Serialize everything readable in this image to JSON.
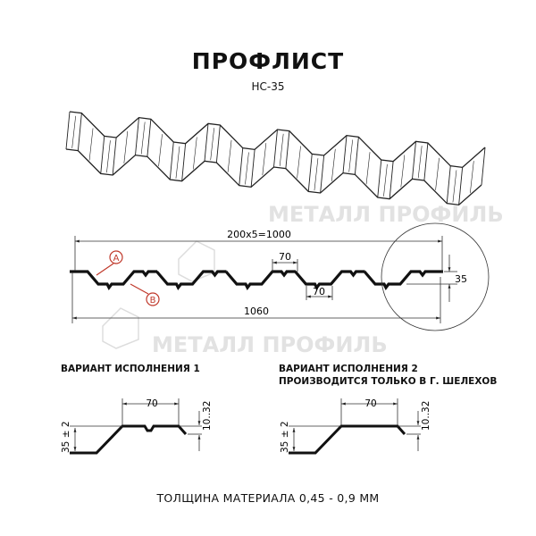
{
  "title": "ПРОФЛИСТ",
  "subtitle": "НС-35",
  "watermark": "МЕТАЛЛ ПРОФИЛЬ",
  "profile": {
    "dim_pitch": "200x5=1000",
    "dim_width": "1060",
    "dim_top_flat": "70",
    "dim_bottom_flat": "70",
    "dim_height": "35",
    "marker_a": "A",
    "marker_b": "B",
    "marker_color": "#c0392b"
  },
  "variant1": {
    "caption": "ВАРИАНТ ИСПОЛНЕНИЯ 1",
    "dim_flat": "70",
    "dim_height": "35 ± 2",
    "dim_edge": "10..32"
  },
  "variant2": {
    "caption_line1": "ВАРИАНТ ИСПОЛНЕНИЯ 2",
    "caption_line2": "ПРОИЗВОДИТСЯ ТОЛЬКО В Г. ШЕЛЕХОВ",
    "dim_flat": "70",
    "dim_height": "35 ± 2",
    "dim_edge": "10..32"
  },
  "footer": "ТОЛЩИНА МАТЕРИАЛА 0,45 - 0,9 ММ"
}
